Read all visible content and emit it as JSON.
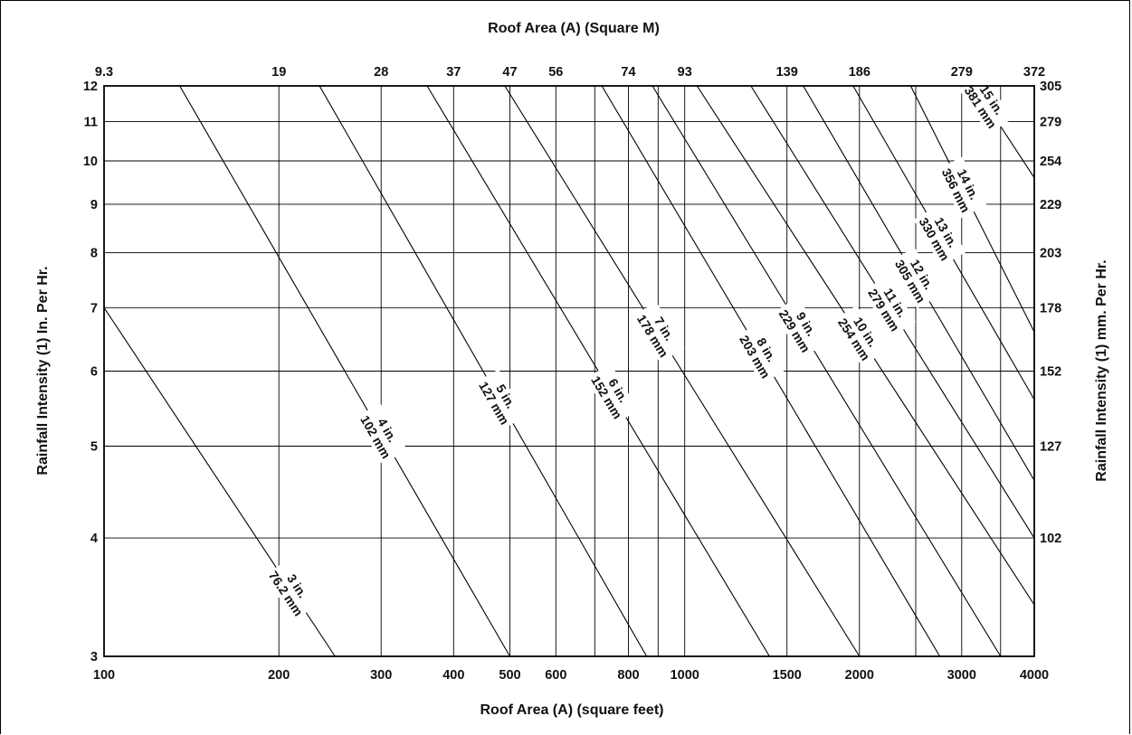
{
  "chart_data": {
    "type": "line",
    "scale": "log-log",
    "grid": true,
    "legend": "none",
    "title": "",
    "x_bottom_label": "Roof Area  (A)  (square feet)",
    "x_top_label": "Roof Area  (A)  (Square M)",
    "y_left_label": "Rainfall Intensity (1) In. Per Hr.",
    "y_right_label": "Rainfall Intensity (1) mm. Per Hr.",
    "xlim": [
      100,
      4000
    ],
    "ylim": [
      3,
      12
    ],
    "x_ticks": [
      100,
      200,
      300,
      400,
      500,
      600,
      800,
      1000,
      1500,
      2000,
      3000,
      4000
    ],
    "x_tick_labels": [
      "100",
      "200",
      "300",
      "400",
      "500",
      "600",
      "800",
      "1000",
      "1500",
      "2000",
      "3000",
      "4000"
    ],
    "x_top_ticks": [
      100,
      200,
      300,
      400,
      500,
      600,
      800,
      1000,
      1500,
      2000,
      3000,
      4000
    ],
    "x_top_tick_labels": [
      "9.3",
      "19",
      "28",
      "37",
      "47",
      "56",
      "74",
      "93",
      "139",
      "186",
      "279",
      "372"
    ],
    "x_extra_gridlines": [
      700,
      900,
      2500,
      3500
    ],
    "y_ticks": [
      3,
      4,
      5,
      6,
      7,
      8,
      9,
      10,
      11,
      12
    ],
    "y_tick_labels": [
      "3",
      "4",
      "5",
      "6",
      "7",
      "8",
      "9",
      "10",
      "11",
      "12"
    ],
    "y_right_ticks": [
      4,
      5,
      6,
      7,
      8,
      9,
      10,
      11,
      12
    ],
    "y_right_tick_labels": [
      "102",
      "127",
      "152",
      "178",
      "203",
      "229",
      "254",
      "279",
      "305"
    ],
    "series": [
      {
        "name_in": "3 in.",
        "name_mm": "76.2 mm",
        "x": [
          100,
          250
        ],
        "y": [
          7,
          3
        ],
        "label_x": 210
      },
      {
        "name_in": "4 in.",
        "name_mm": "102 mm",
        "x": [
          135,
          500
        ],
        "y": [
          12,
          3
        ],
        "label_x": 300
      },
      {
        "name_in": "5 in.",
        "name_mm": "127 mm",
        "x": [
          235,
          860
        ],
        "y": [
          12,
          3
        ],
        "label_x": 480
      },
      {
        "name_in": "6 in.",
        "name_mm": "152 mm",
        "x": [
          360,
          1400
        ],
        "y": [
          12,
          3
        ],
        "label_x": 750
      },
      {
        "name_in": "7 in.",
        "name_mm": "178 mm",
        "x": [
          490,
          2000
        ],
        "y": [
          12,
          3
        ],
        "label_x": 900
      },
      {
        "name_in": "8 in.",
        "name_mm": "203 mm",
        "x": [
          720,
          2750
        ],
        "y": [
          12,
          3
        ],
        "label_x": 1350
      },
      {
        "name_in": "9 in.",
        "name_mm": "229 mm",
        "x": [
          880,
          3500
        ],
        "y": [
          12,
          3
        ],
        "label_x": 1580
      },
      {
        "name_in": "10 in.",
        "name_mm": "254 mm",
        "x": [
          1050,
          4000
        ],
        "y": [
          12,
          3.4
        ],
        "label_x": 2000
      },
      {
        "name_in": "11 in.",
        "name_mm": "279 mm",
        "x": [
          1300,
          4000
        ],
        "y": [
          12,
          4
        ],
        "label_x": 2250
      },
      {
        "name_in": "12 in.",
        "name_mm": "305 mm",
        "x": [
          1600,
          4000
        ],
        "y": [
          12,
          4.6
        ],
        "label_x": 2500
      },
      {
        "name_in": "13 in.",
        "name_mm": "330 mm",
        "x": [
          1950,
          4000
        ],
        "y": [
          12,
          5.6
        ],
        "label_x": 2750
      },
      {
        "name_in": "14 in.",
        "name_mm": "356 mm",
        "x": [
          2450,
          4000
        ],
        "y": [
          12,
          6.6
        ],
        "label_x": 3000
      },
      {
        "name_in": "15 in.",
        "name_mm": "381 mm",
        "x": [
          3150,
          4000
        ],
        "y": [
          12,
          9.6
        ],
        "label_x": 3300
      }
    ]
  }
}
